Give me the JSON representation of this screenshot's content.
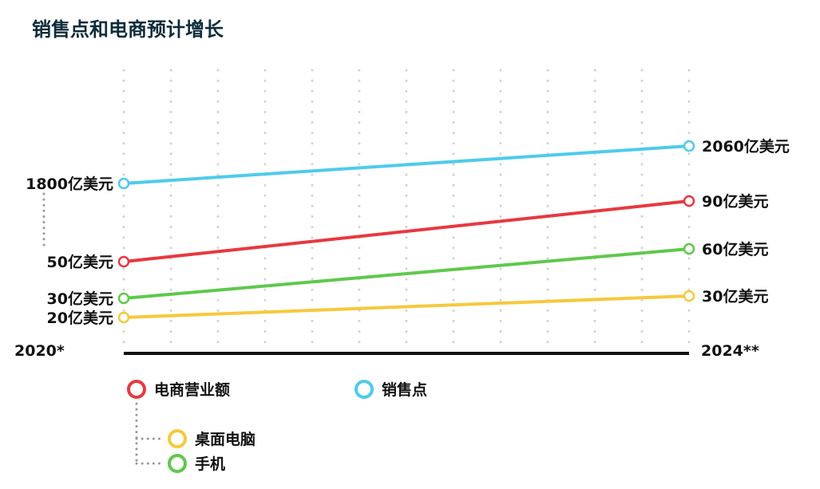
{
  "title": "销售点和电商预计增长",
  "chart_data": {
    "type": "line",
    "title": "销售点和电商预计增长",
    "x": [
      "2020*",
      "2024**"
    ],
    "series": [
      {
        "name": "销售点",
        "values": [
          1800,
          2060
        ],
        "color": "#4ecbeb",
        "start_label": "1800亿美元",
        "end_label": "2060亿美元"
      },
      {
        "name": "电商营业额",
        "values": [
          50,
          90
        ],
        "color": "#e8383f",
        "start_label": "50亿美元",
        "end_label": "90亿美元"
      },
      {
        "name": "手机",
        "values": [
          30,
          60
        ],
        "color": "#5ec94b",
        "start_label": "30亿美元",
        "end_label": "60亿美元"
      },
      {
        "name": "桌面电脑",
        "values": [
          20,
          30
        ],
        "color": "#f6c93d",
        "start_label": "20亿美元",
        "end_label": "30亿美元"
      }
    ],
    "unit": "亿美元",
    "grid": true,
    "legend": {
      "items": [
        {
          "label": "电商营业额",
          "color": "#e8383f"
        },
        {
          "label": "销售点",
          "color": "#4ecbeb"
        },
        {
          "label": "桌面电脑",
          "color": "#f6c93d"
        },
        {
          "label": "手机",
          "color": "#5ec94b"
        }
      ],
      "placement": "bottom"
    }
  }
}
